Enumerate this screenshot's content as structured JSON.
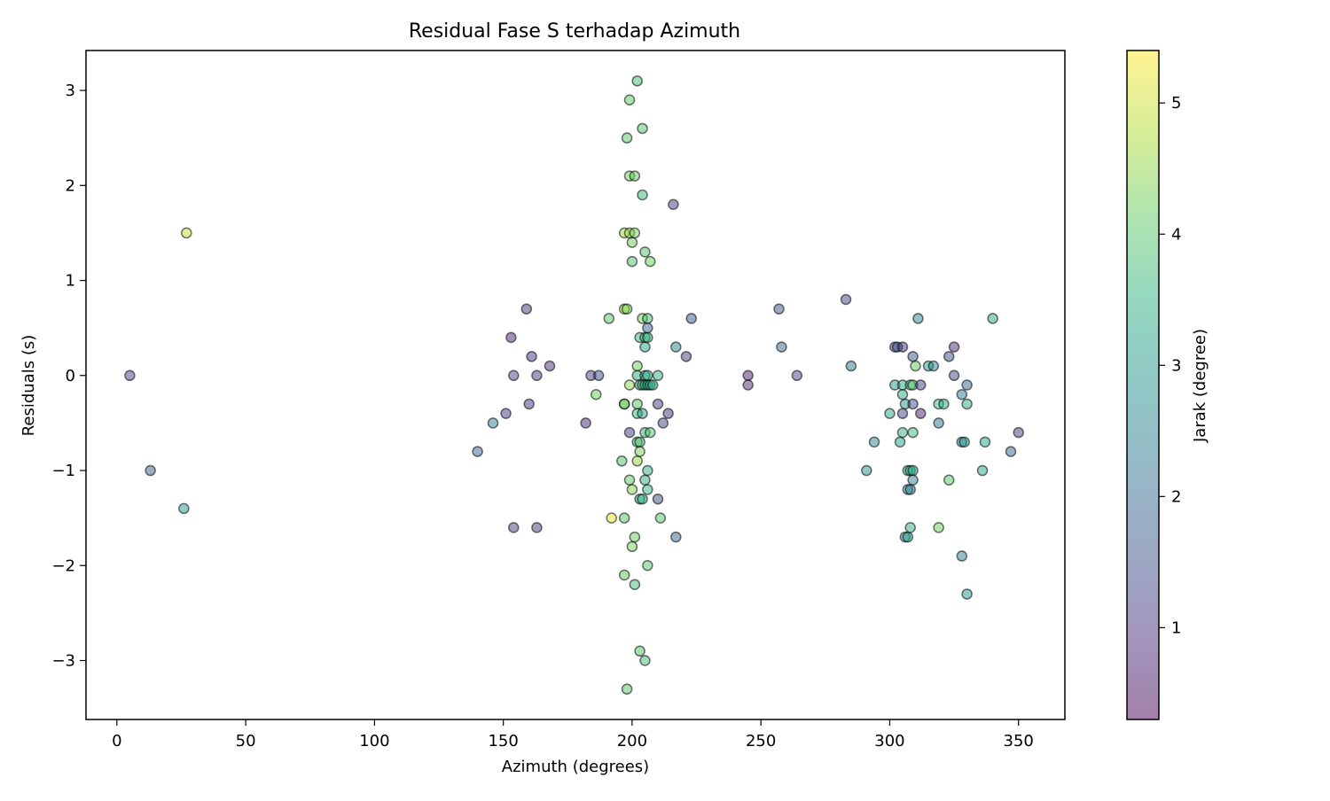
{
  "chart_data": {
    "type": "scatter",
    "title": "Residual Fase S terhadap Azimuth",
    "xlabel": "Azimuth (degrees)",
    "ylabel": "Residuals (s)",
    "xlim": [
      -12,
      368
    ],
    "ylim": [
      -3.62,
      3.42
    ],
    "xticks": [
      0,
      50,
      100,
      150,
      200,
      250,
      300,
      350
    ],
    "yticks": [
      -3,
      -2,
      -1,
      0,
      1,
      2,
      3
    ],
    "grid": false,
    "colorbar": {
      "label": "Jarak (degree)",
      "colormap": "viridis",
      "range": [
        0.3,
        5.4
      ],
      "ticks": [
        1,
        2,
        3,
        4,
        5
      ]
    },
    "marker": {
      "alpha": 0.5,
      "edgecolor": "#000000"
    },
    "points": [
      {
        "x": 5,
        "y": 0.0,
        "c": 1.3
      },
      {
        "x": 13,
        "y": -1.0,
        "c": 1.8
      },
      {
        "x": 26,
        "y": -1.4,
        "c": 3.1
      },
      {
        "x": 27,
        "y": 1.5,
        "c": 4.9
      },
      {
        "x": 140,
        "y": -0.8,
        "c": 1.9
      },
      {
        "x": 146,
        "y": -0.5,
        "c": 2.5
      },
      {
        "x": 151,
        "y": -0.4,
        "c": 1.2
      },
      {
        "x": 153,
        "y": 0.4,
        "c": 0.8
      },
      {
        "x": 154,
        "y": 0.0,
        "c": 1.3
      },
      {
        "x": 154,
        "y": -1.6,
        "c": 1.2
      },
      {
        "x": 159,
        "y": 0.7,
        "c": 1.0
      },
      {
        "x": 160,
        "y": -0.3,
        "c": 1.1
      },
      {
        "x": 161,
        "y": 0.2,
        "c": 1.1
      },
      {
        "x": 163,
        "y": 0.0,
        "c": 1.2
      },
      {
        "x": 163,
        "y": -1.6,
        "c": 1.2
      },
      {
        "x": 168,
        "y": 0.1,
        "c": 1.0
      },
      {
        "x": 182,
        "y": -0.5,
        "c": 0.9
      },
      {
        "x": 184,
        "y": 0.0,
        "c": 1.3
      },
      {
        "x": 187,
        "y": 0.0,
        "c": 1.4
      },
      {
        "x": 186,
        "y": -0.2,
        "c": 4.2
      },
      {
        "x": 191,
        "y": 0.6,
        "c": 4.0
      },
      {
        "x": 192,
        "y": -1.5,
        "c": 5.2
      },
      {
        "x": 197,
        "y": 1.5,
        "c": 4.6
      },
      {
        "x": 197,
        "y": 0.7,
        "c": 4.7
      },
      {
        "x": 198,
        "y": 0.7,
        "c": 4.3
      },
      {
        "x": 197,
        "y": -0.3,
        "c": 4.4
      },
      {
        "x": 197,
        "y": -0.3,
        "c": 4.1
      },
      {
        "x": 196,
        "y": -0.9,
        "c": 3.9
      },
      {
        "x": 197,
        "y": -1.5,
        "c": 4.0
      },
      {
        "x": 197,
        "y": -2.1,
        "c": 4.1
      },
      {
        "x": 198,
        "y": -3.3,
        "c": 4.0
      },
      {
        "x": 198,
        "y": 2.5,
        "c": 4.0
      },
      {
        "x": 199,
        "y": 2.9,
        "c": 4.1
      },
      {
        "x": 199,
        "y": 2.1,
        "c": 4.3
      },
      {
        "x": 199,
        "y": 1.5,
        "c": 4.7
      },
      {
        "x": 200,
        "y": 1.4,
        "c": 4.2
      },
      {
        "x": 200,
        "y": 1.2,
        "c": 3.9
      },
      {
        "x": 199,
        "y": -0.1,
        "c": 4.5
      },
      {
        "x": 199,
        "y": -0.6,
        "c": 1.2
      },
      {
        "x": 199,
        "y": -1.1,
        "c": 4.1
      },
      {
        "x": 200,
        "y": -1.2,
        "c": 4.4
      },
      {
        "x": 200,
        "y": -1.8,
        "c": 4.3
      },
      {
        "x": 201,
        "y": -1.7,
        "c": 4.2
      },
      {
        "x": 201,
        "y": -2.2,
        "c": 3.8
      },
      {
        "x": 201,
        "y": 2.1,
        "c": 4.1
      },
      {
        "x": 201,
        "y": 1.5,
        "c": 4.3
      },
      {
        "x": 202,
        "y": 3.1,
        "c": 3.8
      },
      {
        "x": 202,
        "y": 0.1,
        "c": 4.2
      },
      {
        "x": 202,
        "y": 0.0,
        "c": 3.5
      },
      {
        "x": 202,
        "y": -0.3,
        "c": 4.0
      },
      {
        "x": 202,
        "y": -0.4,
        "c": 3.7
      },
      {
        "x": 202,
        "y": -0.7,
        "c": 3.6
      },
      {
        "x": 202,
        "y": -0.9,
        "c": 4.6
      },
      {
        "x": 203,
        "y": 0.4,
        "c": 3.6
      },
      {
        "x": 203,
        "y": -0.1,
        "c": 3.5
      },
      {
        "x": 203,
        "y": -0.7,
        "c": 4.0
      },
      {
        "x": 203,
        "y": -0.8,
        "c": 4.3
      },
      {
        "x": 203,
        "y": -1.3,
        "c": 3.3
      },
      {
        "x": 203,
        "y": -2.9,
        "c": 4.0
      },
      {
        "x": 204,
        "y": 2.6,
        "c": 4.0
      },
      {
        "x": 204,
        "y": 1.9,
        "c": 3.7
      },
      {
        "x": 204,
        "y": 0.6,
        "c": 4.3
      },
      {
        "x": 204,
        "y": -0.1,
        "c": 3.8
      },
      {
        "x": 204,
        "y": -0.4,
        "c": 3.2
      },
      {
        "x": 204,
        "y": -1.3,
        "c": 3.6
      },
      {
        "x": 205,
        "y": 1.3,
        "c": 3.9
      },
      {
        "x": 205,
        "y": 0.4,
        "c": 3.8
      },
      {
        "x": 205,
        "y": 0.3,
        "c": 3.2
      },
      {
        "x": 205,
        "y": 0.0,
        "c": 3.4
      },
      {
        "x": 205,
        "y": -0.1,
        "c": 3.3
      },
      {
        "x": 205,
        "y": -0.6,
        "c": 3.6
      },
      {
        "x": 205,
        "y": -1.1,
        "c": 3.5
      },
      {
        "x": 205,
        "y": -3.0,
        "c": 3.8
      },
      {
        "x": 206,
        "y": 0.6,
        "c": 3.8
      },
      {
        "x": 206,
        "y": 0.5,
        "c": 2.0
      },
      {
        "x": 206,
        "y": 0.4,
        "c": 3.4
      },
      {
        "x": 206,
        "y": 0.0,
        "c": 3.4
      },
      {
        "x": 206,
        "y": -0.1,
        "c": 3.3
      },
      {
        "x": 206,
        "y": -1.0,
        "c": 3.5
      },
      {
        "x": 206,
        "y": -1.2,
        "c": 3.6
      },
      {
        "x": 206,
        "y": -2.0,
        "c": 4.0
      },
      {
        "x": 207,
        "y": 1.2,
        "c": 4.2
      },
      {
        "x": 207,
        "y": -0.1,
        "c": 3.5
      },
      {
        "x": 207,
        "y": -0.6,
        "c": 4.0
      },
      {
        "x": 208,
        "y": -0.1,
        "c": 3.4
      },
      {
        "x": 210,
        "y": 0.0,
        "c": 3.6
      },
      {
        "x": 210,
        "y": -0.3,
        "c": 1.2
      },
      {
        "x": 210,
        "y": -1.3,
        "c": 1.5
      },
      {
        "x": 211,
        "y": -1.5,
        "c": 4.0
      },
      {
        "x": 212,
        "y": -0.5,
        "c": 1.4
      },
      {
        "x": 214,
        "y": -0.4,
        "c": 1.0
      },
      {
        "x": 216,
        "y": 1.8,
        "c": 1.2
      },
      {
        "x": 217,
        "y": 0.3,
        "c": 2.6
      },
      {
        "x": 217,
        "y": -1.7,
        "c": 1.9
      },
      {
        "x": 221,
        "y": 0.2,
        "c": 1.2
      },
      {
        "x": 223,
        "y": 0.6,
        "c": 1.6
      },
      {
        "x": 245,
        "y": 0.0,
        "c": 0.7
      },
      {
        "x": 245,
        "y": -0.1,
        "c": 0.9
      },
      {
        "x": 257,
        "y": 0.7,
        "c": 1.6
      },
      {
        "x": 258,
        "y": 0.3,
        "c": 2.0
      },
      {
        "x": 264,
        "y": 0.0,
        "c": 1.3
      },
      {
        "x": 283,
        "y": 0.8,
        "c": 1.3
      },
      {
        "x": 285,
        "y": 0.1,
        "c": 2.3
      },
      {
        "x": 291,
        "y": -1.0,
        "c": 2.9
      },
      {
        "x": 294,
        "y": -0.7,
        "c": 2.6
      },
      {
        "x": 300,
        "y": -0.4,
        "c": 3.3
      },
      {
        "x": 302,
        "y": 0.3,
        "c": 1.2
      },
      {
        "x": 302,
        "y": -0.1,
        "c": 3.0
      },
      {
        "x": 303,
        "y": 0.3,
        "c": 1.6
      },
      {
        "x": 304,
        "y": -0.7,
        "c": 3.2
      },
      {
        "x": 305,
        "y": 0.3,
        "c": 1.0
      },
      {
        "x": 305,
        "y": -0.1,
        "c": 3.3
      },
      {
        "x": 305,
        "y": -0.2,
        "c": 3.4
      },
      {
        "x": 305,
        "y": -0.4,
        "c": 1.3
      },
      {
        "x": 305,
        "y": -0.6,
        "c": 3.6
      },
      {
        "x": 306,
        "y": -0.3,
        "c": 3.0
      },
      {
        "x": 306,
        "y": -1.7,
        "c": 2.6
      },
      {
        "x": 307,
        "y": -1.0,
        "c": 3.3
      },
      {
        "x": 307,
        "y": -1.2,
        "c": 2.8
      },
      {
        "x": 307,
        "y": -1.7,
        "c": 3.2
      },
      {
        "x": 308,
        "y": -0.1,
        "c": 3.8
      },
      {
        "x": 308,
        "y": -1.0,
        "c": 3.6
      },
      {
        "x": 308,
        "y": -1.2,
        "c": 2.2
      },
      {
        "x": 308,
        "y": -1.6,
        "c": 3.5
      },
      {
        "x": 309,
        "y": -0.1,
        "c": 4.0
      },
      {
        "x": 309,
        "y": -0.3,
        "c": 1.4
      },
      {
        "x": 309,
        "y": -0.6,
        "c": 3.7
      },
      {
        "x": 309,
        "y": -1.0,
        "c": 3.2
      },
      {
        "x": 309,
        "y": -1.1,
        "c": 2.5
      },
      {
        "x": 309,
        "y": 0.2,
        "c": 1.6
      },
      {
        "x": 310,
        "y": 0.1,
        "c": 4.1
      },
      {
        "x": 311,
        "y": 0.6,
        "c": 2.6
      },
      {
        "x": 312,
        "y": -0.1,
        "c": 1.3
      },
      {
        "x": 312,
        "y": -0.4,
        "c": 0.8
      },
      {
        "x": 315,
        "y": 0.1,
        "c": 3.0
      },
      {
        "x": 317,
        "y": 0.1,
        "c": 2.6
      },
      {
        "x": 319,
        "y": -0.3,
        "c": 3.8
      },
      {
        "x": 319,
        "y": -0.5,
        "c": 2.4
      },
      {
        "x": 319,
        "y": -1.6,
        "c": 4.2
      },
      {
        "x": 321,
        "y": -0.3,
        "c": 3.4
      },
      {
        "x": 323,
        "y": 0.2,
        "c": 1.5
      },
      {
        "x": 323,
        "y": -1.1,
        "c": 4.0
      },
      {
        "x": 325,
        "y": 0.3,
        "c": 0.9
      },
      {
        "x": 325,
        "y": 0.0,
        "c": 1.4
      },
      {
        "x": 328,
        "y": -0.2,
        "c": 2.4
      },
      {
        "x": 328,
        "y": -0.7,
        "c": 2.2
      },
      {
        "x": 328,
        "y": -1.9,
        "c": 2.5
      },
      {
        "x": 329,
        "y": -0.7,
        "c": 3.0
      },
      {
        "x": 330,
        "y": -0.1,
        "c": 2.0
      },
      {
        "x": 330,
        "y": -0.3,
        "c": 3.5
      },
      {
        "x": 330,
        "y": -2.3,
        "c": 3.1
      },
      {
        "x": 336,
        "y": -1.0,
        "c": 3.3
      },
      {
        "x": 337,
        "y": -0.7,
        "c": 3.3
      },
      {
        "x": 340,
        "y": 0.6,
        "c": 3.3
      },
      {
        "x": 347,
        "y": -0.8,
        "c": 2.0
      },
      {
        "x": 350,
        "y": -0.6,
        "c": 1.1
      }
    ]
  }
}
